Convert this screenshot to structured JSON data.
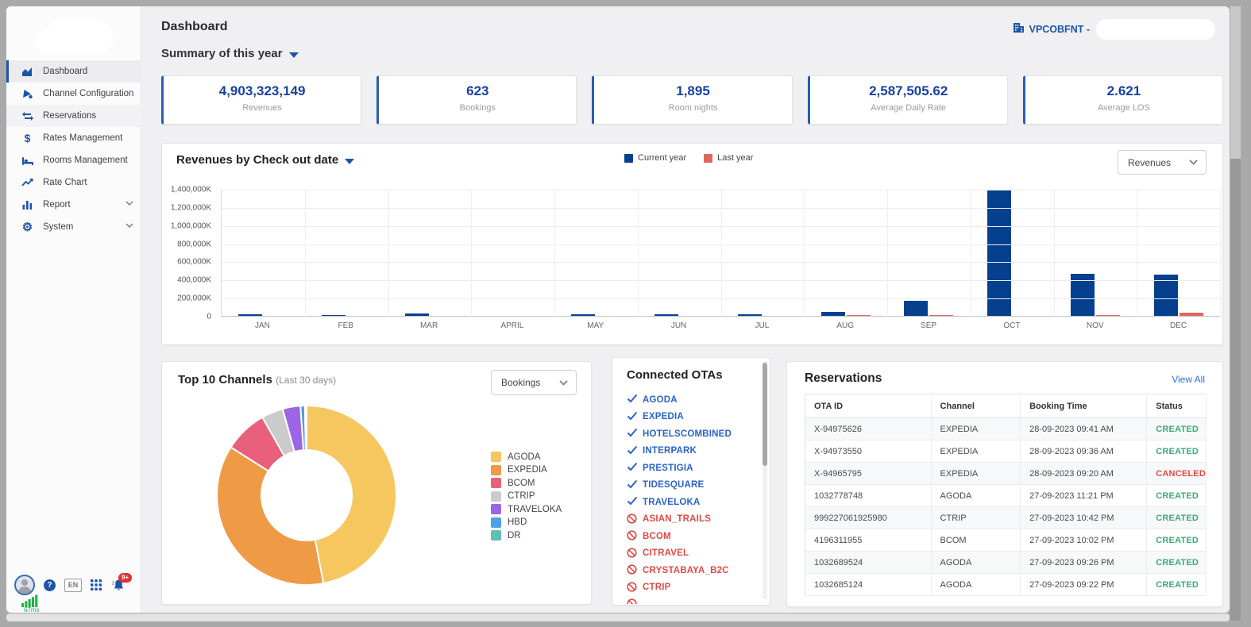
{
  "header": {
    "title": "Dashboard",
    "period_selector": "Summary of this year",
    "property": "VPCOBFNT  -"
  },
  "sidebar": {
    "items": [
      {
        "label": "Dashboard",
        "icon": "area-chart-icon",
        "state": "active"
      },
      {
        "label": "Channel Configuration",
        "icon": "channel-config-icon",
        "state": "normal"
      },
      {
        "label": "Reservations",
        "icon": "swap-arrows-icon",
        "state": "highlight"
      },
      {
        "label": "Rates Management",
        "icon": "dollar-icon",
        "state": "normal"
      },
      {
        "label": "Rooms Management",
        "icon": "bed-icon",
        "state": "normal"
      },
      {
        "label": "Rate Chart",
        "icon": "trending-up-icon",
        "state": "normal"
      },
      {
        "label": "Report",
        "icon": "bar-chart-icon",
        "state": "normal",
        "expandable": true
      },
      {
        "label": "System",
        "icon": "gear-icon",
        "state": "normal",
        "expandable": true
      }
    ],
    "footer": {
      "language": "EN",
      "notification_badge": "9+",
      "latency": "67ms"
    }
  },
  "kpis": [
    {
      "value": "4,903,323,149",
      "label": "Revenues"
    },
    {
      "value": "623",
      "label": "Bookings"
    },
    {
      "value": "1,895",
      "label": "Room nights"
    },
    {
      "value": "2,587,505.62",
      "label": "Average Daily Rate"
    },
    {
      "value": "2.621",
      "label": "Average LOS"
    }
  ],
  "revenue_chart": {
    "title": "Revenues by Check out date",
    "metric_dropdown": "Revenues",
    "legend": [
      {
        "label": "Current year",
        "color": "#04408e"
      },
      {
        "label": "Last year",
        "color": "#dd675e"
      }
    ]
  },
  "chart_data": [
    {
      "type": "bar",
      "title": "Revenues by Check out date",
      "categories": [
        "JAN",
        "FEB",
        "MAR",
        "APRIL",
        "MAY",
        "JUN",
        "JUL",
        "AUG",
        "SEP",
        "OCT",
        "NOV",
        "DEC"
      ],
      "series": [
        {
          "name": "Current year",
          "color": "#04408e",
          "values": [
            26000,
            18000,
            32000,
            0,
            26000,
            26000,
            30000,
            56000,
            175000,
            1390000,
            470000,
            465000
          ]
        },
        {
          "name": "Last year",
          "color": "#dd675e",
          "values": [
            0,
            8000,
            8000,
            0,
            0,
            6000,
            0,
            21000,
            15000,
            5000,
            20000,
            44000
          ]
        }
      ],
      "unit": "K",
      "ylim": [
        0,
        1400000
      ],
      "yticks": [
        "0",
        "200,000K",
        "400,000K",
        "600,000K",
        "800,000K",
        "1,000,000K",
        "1,200,000K",
        "1,400,000K"
      ],
      "grid": true,
      "legend_position": "top"
    },
    {
      "type": "pie",
      "title": "Top 10 Channels (Last 30 days)",
      "labels": [
        "AGODA",
        "EXPEDIA",
        "BCOM",
        "CTRIP",
        "TRAVELOKA",
        "HBD",
        "DR"
      ],
      "values_percent": [
        47,
        37,
        7.8,
        3.9,
        3.2,
        0.8,
        0.3
      ],
      "colors": [
        "#f6c65f",
        "#ef9b45",
        "#e8607c",
        "#cbcbcb",
        "#9c64e6",
        "#4f9fe8",
        "#5fbfb2"
      ],
      "donut": true,
      "legend_position": "right"
    }
  ],
  "top_channels": {
    "title": "Top 10 Channels",
    "subtitle": "(Last 30 days)",
    "metric_dropdown": "Bookings"
  },
  "connected_otas": {
    "title": "Connected OTAs",
    "items": [
      {
        "label": "AGODA",
        "connected": true
      },
      {
        "label": "EXPEDIA",
        "connected": true
      },
      {
        "label": "HOTELSCOMBINED",
        "connected": true
      },
      {
        "label": "INTERPARK",
        "connected": true
      },
      {
        "label": "PRESTIGIA",
        "connected": true
      },
      {
        "label": "TIDESQUARE",
        "connected": true
      },
      {
        "label": "TRAVELOKA",
        "connected": true
      },
      {
        "label": "ASIAN_TRAILS",
        "connected": false
      },
      {
        "label": "BCOM",
        "connected": false
      },
      {
        "label": "CITRAVEL",
        "connected": false
      },
      {
        "label": "CRYSTABAYA_B2C",
        "connected": false
      },
      {
        "label": "CTRIP",
        "connected": false
      },
      {
        "label": "",
        "connected": false,
        "partial": true
      }
    ]
  },
  "reservations": {
    "title": "Reservations",
    "view_all": "View All",
    "columns": [
      "OTA ID",
      "Channel",
      "Booking Time",
      "Status"
    ],
    "rows": [
      {
        "ota_id": "X-94975626",
        "channel": "EXPEDIA",
        "booking_time": "28-09-2023 09:41 AM",
        "status": "CREATED"
      },
      {
        "ota_id": "X-94973550",
        "channel": "EXPEDIA",
        "booking_time": "28-09-2023 09:36 AM",
        "status": "CREATED"
      },
      {
        "ota_id": "X-94965795",
        "channel": "EXPEDIA",
        "booking_time": "28-09-2023 09:20 AM",
        "status": "CANCELED"
      },
      {
        "ota_id": "1032778748",
        "channel": "AGODA",
        "booking_time": "27-09-2023 11:21 PM",
        "status": "CREATED"
      },
      {
        "ota_id": "999227061925980",
        "channel": "CTRIP",
        "booking_time": "27-09-2023 10:42 PM",
        "status": "CREATED"
      },
      {
        "ota_id": "4196311955",
        "channel": "BCOM",
        "booking_time": "27-09-2023 10:02 PM",
        "status": "CREATED"
      },
      {
        "ota_id": "1032689524",
        "channel": "AGODA",
        "booking_time": "27-09-2023 09:26 PM",
        "status": "CREATED"
      },
      {
        "ota_id": "1032685124",
        "channel": "AGODA",
        "booking_time": "27-09-2023 09:22 PM",
        "status": "CREATED"
      }
    ],
    "status_colors": {
      "CREATED": "#3cab76",
      "CANCELED": "#e04a46"
    }
  }
}
